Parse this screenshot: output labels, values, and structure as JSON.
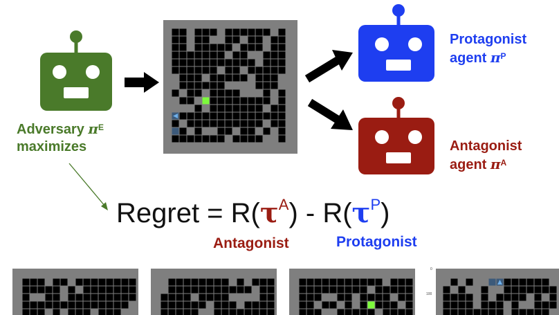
{
  "colors": {
    "adversary": "#4a7a2a",
    "protagonist": "#1e3ef0",
    "antagonist": "#9a1c12",
    "goal": "#7dfa3c",
    "agent_cell": "#3c5a7a",
    "agent_marker": "#6fb0ea",
    "wall": "#7f7f7f",
    "floor": "#000000"
  },
  "icons": {
    "adversary_robot": "robot-icon",
    "protagonist_robot": "robot-icon",
    "antagonist_robot": "robot-icon"
  },
  "labels": {
    "adversary_name": "Adversary ",
    "adversary_symbol": "π",
    "adversary_sup": "E",
    "adversary_verb": "maximizes",
    "protagonist_name": "Protagonist",
    "protagonist_agent": "agent ",
    "protagonist_symbol": "π",
    "protagonist_sup": "P",
    "antagonist_name": "Antagonist",
    "antagonist_agent": "agent ",
    "antagonist_symbol": "π",
    "antagonist_sup": "A"
  },
  "equation": {
    "lhs": "Regret = R(",
    "tau1": "τ",
    "sup1": "A",
    "mid": ") - R(",
    "tau2": "τ",
    "sup2": "P",
    "close": ")"
  },
  "captions": {
    "antagonist": "Antagonist",
    "protagonist": "Protagonist"
  },
  "bottom_axis": {
    "tick_0": "0",
    "tick_100": "100"
  }
}
